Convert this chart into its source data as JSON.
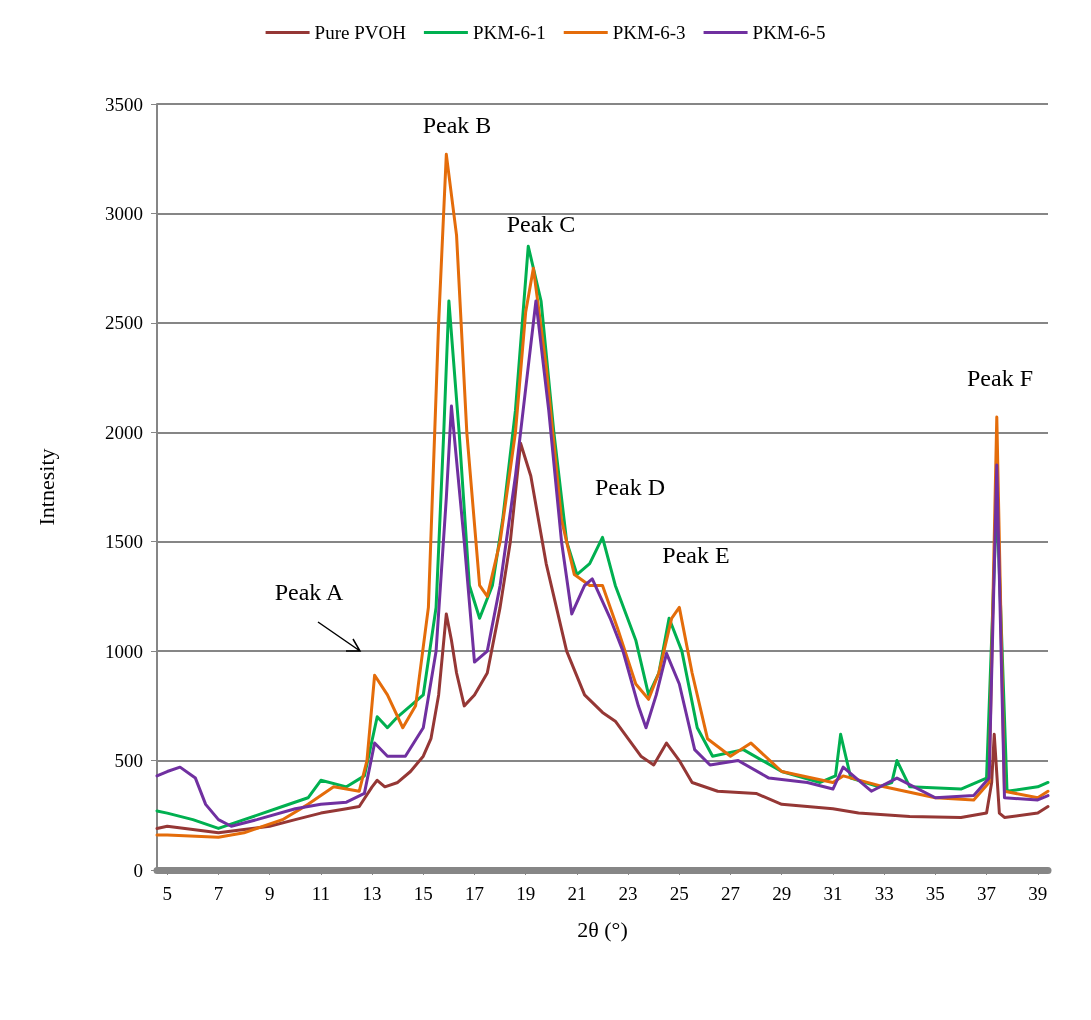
{
  "chart_data": {
    "type": "line",
    "xlabel": "2θ (°)",
    "ylabel": "Intnesity",
    "xlim": [
      4.6,
      39.4
    ],
    "xticks": [
      5,
      7,
      9,
      11,
      13,
      15,
      17,
      19,
      21,
      23,
      25,
      27,
      29,
      31,
      33,
      35,
      37,
      39
    ],
    "ylim": [
      0,
      3500
    ],
    "yticks": [
      0,
      500,
      1000,
      1500,
      2000,
      2500,
      3000,
      3500
    ],
    "grid": "y",
    "legend": "top",
    "line_style": "solid",
    "annotations": [
      "Peak A",
      "Peak B",
      "Peak C",
      "Peak D",
      "Peak E",
      "Peak F"
    ],
    "series": [
      {
        "name": "Pure PVOH",
        "color": "#953735",
        "x": [
          4.6,
          5,
          6,
          7,
          8,
          9,
          10,
          11,
          12,
          12.5,
          13,
          13.2,
          13.5,
          14,
          14.5,
          15,
          15.3,
          15.6,
          15.9,
          16.1,
          16.3,
          16.6,
          17,
          17.5,
          18,
          18.4,
          18.8,
          19.2,
          19.8,
          20.6,
          21.3,
          22,
          22.5,
          23,
          23.5,
          24,
          24.5,
          25,
          25.5,
          26.5,
          28,
          29,
          30,
          31,
          32,
          34,
          36,
          37,
          37.2,
          37.3,
          37.5,
          37.7,
          39,
          39.4
        ],
        "values": [
          190,
          200,
          185,
          170,
          185,
          200,
          230,
          260,
          280,
          290,
          380,
          410,
          380,
          400,
          450,
          520,
          600,
          800,
          1170,
          1050,
          900,
          750,
          800,
          900,
          1200,
          1500,
          1950,
          1800,
          1400,
          1000,
          800,
          720,
          680,
          600,
          520,
          480,
          580,
          500,
          400,
          360,
          350,
          300,
          290,
          280,
          260,
          245,
          240,
          260,
          400,
          620,
          260,
          240,
          260,
          290
        ]
      },
      {
        "name": "PKM-6-1",
        "color": "#00b050",
        "x": [
          4.6,
          5,
          6,
          7,
          8,
          9.5,
          10.5,
          11,
          12,
          12.7,
          13.2,
          13.6,
          14,
          15,
          15.5,
          15.8,
          16,
          16.4,
          16.8,
          17.2,
          17.7,
          18.1,
          18.6,
          19.1,
          19.6,
          20.1,
          20.6,
          21,
          21.5,
          22,
          22.5,
          23.3,
          23.8,
          24.2,
          24.6,
          25.1,
          25.7,
          26.3,
          27.5,
          29,
          30.5,
          31.1,
          31.3,
          31.7,
          32.8,
          33.3,
          33.5,
          34,
          36,
          37,
          37.4,
          37.8,
          39,
          39.4
        ],
        "values": [
          270,
          260,
          230,
          190,
          230,
          290,
          330,
          410,
          380,
          430,
          700,
          650,
          700,
          800,
          1200,
          2000,
          2600,
          2000,
          1300,
          1150,
          1300,
          1600,
          2100,
          2850,
          2600,
          2000,
          1500,
          1350,
          1400,
          1520,
          1300,
          1050,
          800,
          900,
          1150,
          1000,
          650,
          520,
          550,
          450,
          400,
          430,
          620,
          420,
          380,
          400,
          500,
          380,
          370,
          420,
          1700,
          360,
          380,
          400
        ]
      },
      {
        "name": "PKM-6-3",
        "color": "#e46c0a",
        "x": [
          4.6,
          5,
          7,
          8,
          9.5,
          10.5,
          11.5,
          12.5,
          12.8,
          13.1,
          13.6,
          14.2,
          14.7,
          15.2,
          15.6,
          15.9,
          16.3,
          16.7,
          17.2,
          17.5,
          18,
          18.6,
          19,
          19.3,
          19.8,
          20.4,
          20.9,
          21.5,
          22,
          22.6,
          23.3,
          23.8,
          24.2,
          24.7,
          25,
          25.5,
          26.1,
          27,
          27.8,
          29,
          31,
          31.4,
          33,
          35,
          36.5,
          37.1,
          37.4,
          37.7,
          39,
          39.4
        ],
        "values": [
          160,
          160,
          150,
          170,
          230,
          300,
          380,
          360,
          500,
          890,
          800,
          650,
          750,
          1200,
          2500,
          3270,
          2900,
          2000,
          1300,
          1250,
          1500,
          2000,
          2550,
          2750,
          2300,
          1600,
          1350,
          1300,
          1300,
          1100,
          850,
          780,
          900,
          1150,
          1200,
          900,
          600,
          520,
          580,
          450,
          400,
          430,
          380,
          330,
          320,
          400,
          2070,
          360,
          330,
          360
        ]
      },
      {
        "name": "PKM-6-5",
        "color": "#7030a0",
        "x": [
          4.6,
          5,
          5.5,
          6.1,
          6.5,
          7,
          7.5,
          8.5,
          10,
          11,
          12,
          12.7,
          13.1,
          13.6,
          14.3,
          15,
          15.5,
          15.9,
          16.1,
          16.6,
          17,
          17.5,
          18,
          18.6,
          19.1,
          19.4,
          19.9,
          20.4,
          20.8,
          21.3,
          21.6,
          22.3,
          22.8,
          23.4,
          23.7,
          24.1,
          24.5,
          25,
          25.6,
          26.2,
          27.3,
          28.5,
          30,
          31,
          31.4,
          32.5,
          33.5,
          35,
          36.5,
          37.1,
          37.4,
          37.7,
          39,
          39.4
        ],
        "values": [
          430,
          450,
          470,
          420,
          300,
          230,
          200,
          230,
          280,
          300,
          310,
          350,
          580,
          520,
          520,
          650,
          1000,
          1700,
          2120,
          1500,
          950,
          1000,
          1300,
          1800,
          2300,
          2600,
          2100,
          1500,
          1170,
          1300,
          1330,
          1150,
          1000,
          750,
          650,
          800,
          990,
          850,
          550,
          480,
          500,
          420,
          400,
          370,
          470,
          360,
          420,
          330,
          340,
          420,
          1850,
          330,
          320,
          340
        ]
      }
    ]
  }
}
